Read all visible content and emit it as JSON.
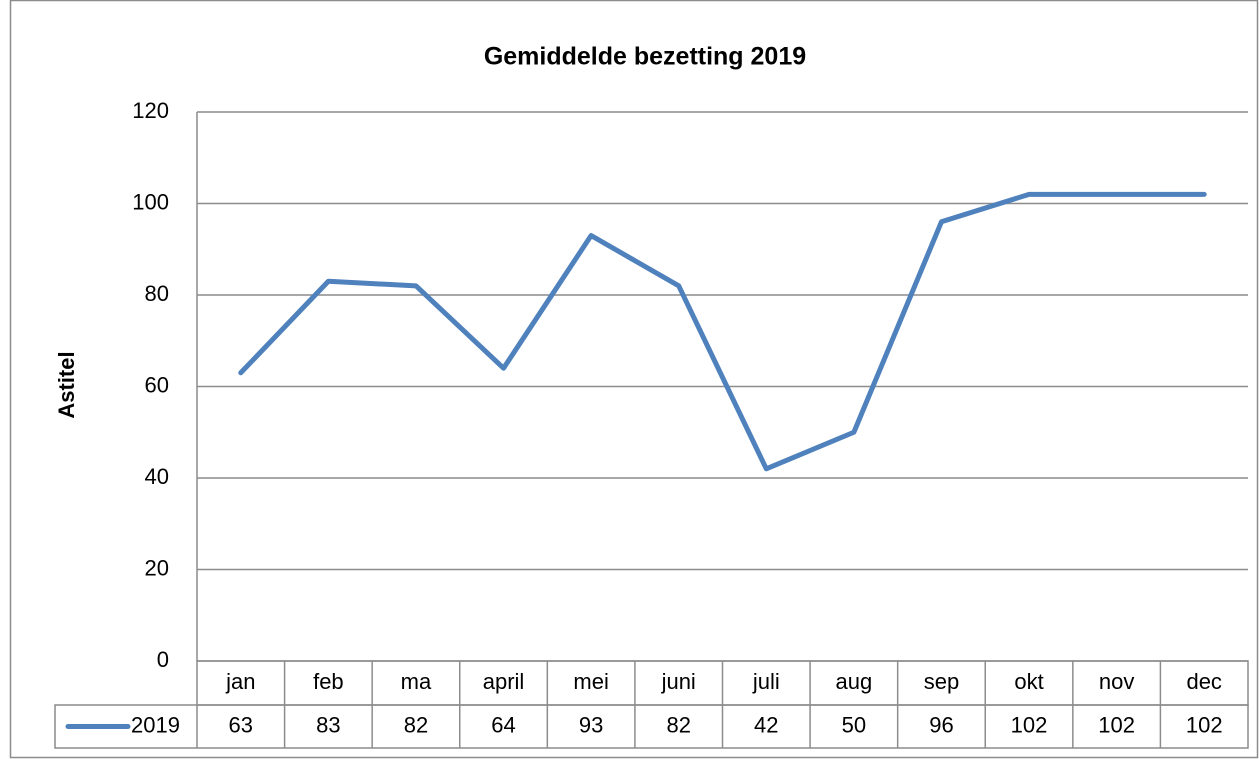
{
  "chart_data": {
    "type": "line",
    "title": "Gemiddelde bezetting 2019",
    "y_label": "Astitel",
    "categories": [
      "jan",
      "feb",
      "ma",
      "april",
      "mei",
      "juni",
      "juli",
      "aug",
      "sep",
      "okt",
      "nov",
      "dec"
    ],
    "series": [
      {
        "name": "2019",
        "color": "#4f81bd",
        "values": [
          63,
          83,
          82,
          64,
          93,
          82,
          42,
          50,
          96,
          102,
          102,
          102
        ]
      }
    ],
    "ylim": [
      0,
      120
    ],
    "yticks": [
      0,
      20,
      40,
      60,
      80,
      100,
      120
    ],
    "grid": true,
    "data_table": true
  }
}
